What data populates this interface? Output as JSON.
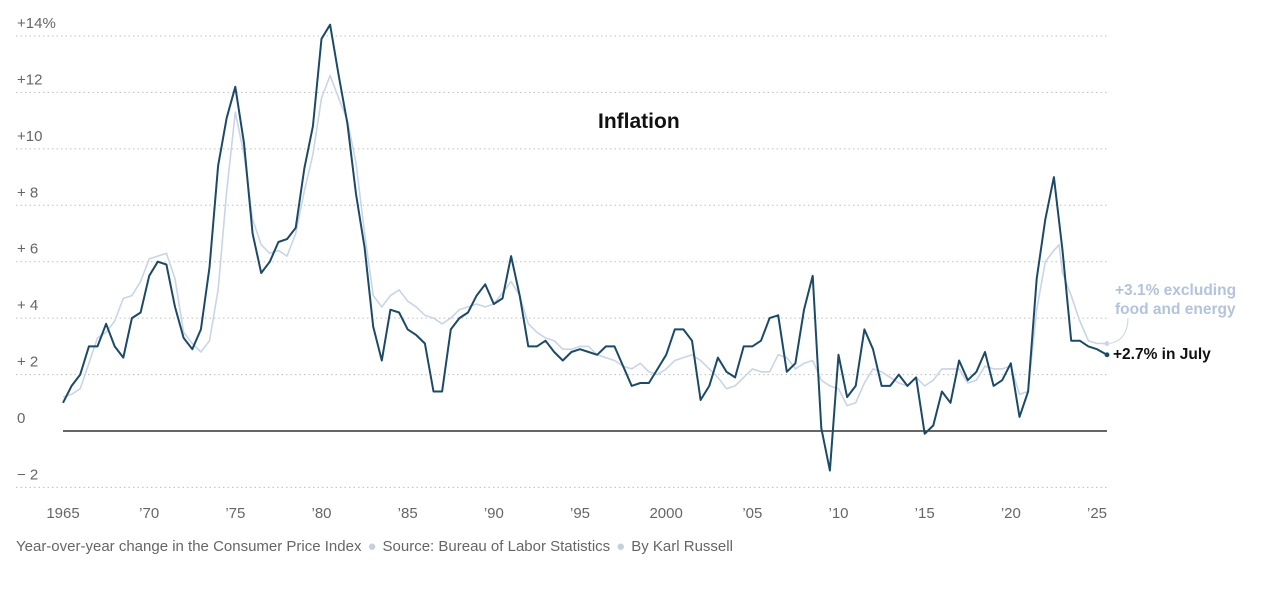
{
  "chart_data": {
    "type": "line",
    "title": "Inflation",
    "xlabel": "",
    "ylabel": "",
    "xlim": [
      1965,
      2025.6
    ],
    "ylim": [
      -2,
      14
    ],
    "y_ticks": [
      {
        "value": 14,
        "label": "+14%"
      },
      {
        "value": 12,
        "label": "+12"
      },
      {
        "value": 10,
        "label": "+10"
      },
      {
        "value": 8,
        "label": "+ 8"
      },
      {
        "value": 6,
        "label": "+ 6"
      },
      {
        "value": 4,
        "label": "+ 4"
      },
      {
        "value": 2,
        "label": "+ 2"
      },
      {
        "value": 0,
        "label": "0"
      },
      {
        "value": -2,
        "label": "− 2"
      }
    ],
    "x_ticks": [
      {
        "value": 1965,
        "label": "1965"
      },
      {
        "value": 1970,
        "label": "’70"
      },
      {
        "value": 1975,
        "label": "’75"
      },
      {
        "value": 1980,
        "label": "’80"
      },
      {
        "value": 1985,
        "label": "’85"
      },
      {
        "value": 1990,
        "label": "’90"
      },
      {
        "value": 1995,
        "label": "’95"
      },
      {
        "value": 2000,
        "label": "2000"
      },
      {
        "value": 2005,
        "label": "’05"
      },
      {
        "value": 2010,
        "label": "’10"
      },
      {
        "value": 2015,
        "label": "’15"
      },
      {
        "value": 2020,
        "label": "’20"
      },
      {
        "value": 2025,
        "label": "’25"
      }
    ],
    "grid": true,
    "series": [
      {
        "name": "+3.1% excluding food and energy",
        "color": "#c9d4e6",
        "points": [
          [
            1965.0,
            1.2
          ],
          [
            1965.5,
            1.3
          ],
          [
            1966.0,
            1.5
          ],
          [
            1966.5,
            2.4
          ],
          [
            1967.0,
            3.3
          ],
          [
            1967.5,
            3.5
          ],
          [
            1968.0,
            3.9
          ],
          [
            1968.5,
            4.7
          ],
          [
            1969.0,
            4.8
          ],
          [
            1969.5,
            5.3
          ],
          [
            1970.0,
            6.1
          ],
          [
            1970.5,
            6.2
          ],
          [
            1971.0,
            6.3
          ],
          [
            1971.5,
            5.4
          ],
          [
            1972.0,
            3.5
          ],
          [
            1972.5,
            3.1
          ],
          [
            1973.0,
            2.8
          ],
          [
            1973.5,
            3.2
          ],
          [
            1974.0,
            5.0
          ],
          [
            1974.5,
            8.5
          ],
          [
            1975.0,
            11.3
          ],
          [
            1975.5,
            9.8
          ],
          [
            1976.0,
            7.5
          ],
          [
            1976.5,
            6.6
          ],
          [
            1977.0,
            6.3
          ],
          [
            1977.5,
            6.4
          ],
          [
            1978.0,
            6.2
          ],
          [
            1978.5,
            7.0
          ],
          [
            1979.0,
            8.5
          ],
          [
            1979.5,
            9.8
          ],
          [
            1980.0,
            11.8
          ],
          [
            1980.5,
            12.6
          ],
          [
            1981.0,
            11.8
          ],
          [
            1981.5,
            11.0
          ],
          [
            1982.0,
            9.5
          ],
          [
            1982.5,
            7.0
          ],
          [
            1983.0,
            4.8
          ],
          [
            1983.5,
            4.4
          ],
          [
            1984.0,
            4.8
          ],
          [
            1984.5,
            5.0
          ],
          [
            1985.0,
            4.6
          ],
          [
            1985.5,
            4.4
          ],
          [
            1986.0,
            4.1
          ],
          [
            1986.5,
            4.0
          ],
          [
            1987.0,
            3.8
          ],
          [
            1987.5,
            4.0
          ],
          [
            1988.0,
            4.3
          ],
          [
            1988.5,
            4.4
          ],
          [
            1989.0,
            4.5
          ],
          [
            1989.5,
            4.4
          ],
          [
            1990.0,
            4.5
          ],
          [
            1990.5,
            4.9
          ],
          [
            1991.0,
            5.3
          ],
          [
            1991.5,
            4.8
          ],
          [
            1992.0,
            3.8
          ],
          [
            1992.5,
            3.5
          ],
          [
            1993.0,
            3.3
          ],
          [
            1993.5,
            3.2
          ],
          [
            1994.0,
            2.9
          ],
          [
            1994.5,
            2.9
          ],
          [
            1995.0,
            3.0
          ],
          [
            1995.5,
            3.0
          ],
          [
            1996.0,
            2.7
          ],
          [
            1996.5,
            2.6
          ],
          [
            1997.0,
            2.5
          ],
          [
            1997.5,
            2.3
          ],
          [
            1998.0,
            2.2
          ],
          [
            1998.5,
            2.4
          ],
          [
            1999.0,
            2.1
          ],
          [
            1999.5,
            2.0
          ],
          [
            2000.0,
            2.2
          ],
          [
            2000.5,
            2.5
          ],
          [
            2001.0,
            2.6
          ],
          [
            2001.5,
            2.7
          ],
          [
            2002.0,
            2.5
          ],
          [
            2002.5,
            2.2
          ],
          [
            2003.0,
            1.9
          ],
          [
            2003.5,
            1.5
          ],
          [
            2004.0,
            1.6
          ],
          [
            2004.5,
            1.9
          ],
          [
            2005.0,
            2.2
          ],
          [
            2005.5,
            2.1
          ],
          [
            2006.0,
            2.1
          ],
          [
            2006.5,
            2.7
          ],
          [
            2007.0,
            2.6
          ],
          [
            2007.5,
            2.2
          ],
          [
            2008.0,
            2.4
          ],
          [
            2008.5,
            2.5
          ],
          [
            2009.0,
            1.8
          ],
          [
            2009.5,
            1.6
          ],
          [
            2010.0,
            1.5
          ],
          [
            2010.5,
            0.9
          ],
          [
            2011.0,
            1.0
          ],
          [
            2011.5,
            1.7
          ],
          [
            2012.0,
            2.2
          ],
          [
            2012.5,
            2.1
          ],
          [
            2013.0,
            1.9
          ],
          [
            2013.5,
            1.7
          ],
          [
            2014.0,
            1.6
          ],
          [
            2014.5,
            1.9
          ],
          [
            2015.0,
            1.6
          ],
          [
            2015.5,
            1.8
          ],
          [
            2016.0,
            2.2
          ],
          [
            2016.5,
            2.2
          ],
          [
            2017.0,
            2.2
          ],
          [
            2017.5,
            1.7
          ],
          [
            2018.0,
            1.8
          ],
          [
            2018.5,
            2.3
          ],
          [
            2019.0,
            2.2
          ],
          [
            2019.5,
            2.2
          ],
          [
            2020.0,
            2.3
          ],
          [
            2020.5,
            1.3
          ],
          [
            2021.0,
            1.4
          ],
          [
            2021.5,
            4.3
          ],
          [
            2022.0,
            6.0
          ],
          [
            2022.5,
            6.4
          ],
          [
            2022.8,
            6.6
          ],
          [
            2023.0,
            5.6
          ],
          [
            2023.5,
            4.8
          ],
          [
            2024.0,
            3.9
          ],
          [
            2024.5,
            3.2
          ],
          [
            2025.0,
            3.1
          ],
          [
            2025.58,
            3.1
          ]
        ]
      },
      {
        "name": "+2.7% in July",
        "color": "#1c4a66",
        "points": [
          [
            1965.0,
            1.0
          ],
          [
            1965.5,
            1.6
          ],
          [
            1966.0,
            2.0
          ],
          [
            1966.5,
            3.0
          ],
          [
            1967.0,
            3.0
          ],
          [
            1967.5,
            3.8
          ],
          [
            1968.0,
            3.0
          ],
          [
            1968.5,
            2.6
          ],
          [
            1969.0,
            4.0
          ],
          [
            1969.5,
            4.2
          ],
          [
            1970.0,
            5.5
          ],
          [
            1970.5,
            6.0
          ],
          [
            1971.0,
            5.9
          ],
          [
            1971.5,
            4.4
          ],
          [
            1972.0,
            3.3
          ],
          [
            1972.5,
            2.9
          ],
          [
            1973.0,
            3.6
          ],
          [
            1973.5,
            5.8
          ],
          [
            1974.0,
            9.4
          ],
          [
            1974.5,
            11.1
          ],
          [
            1975.0,
            12.2
          ],
          [
            1975.5,
            10.2
          ],
          [
            1976.0,
            7.0
          ],
          [
            1976.5,
            5.6
          ],
          [
            1977.0,
            6.0
          ],
          [
            1977.5,
            6.7
          ],
          [
            1978.0,
            6.8
          ],
          [
            1978.5,
            7.2
          ],
          [
            1979.0,
            9.3
          ],
          [
            1979.5,
            10.8
          ],
          [
            1980.0,
            13.9
          ],
          [
            1980.5,
            14.4
          ],
          [
            1981.0,
            12.6
          ],
          [
            1981.5,
            10.9
          ],
          [
            1982.0,
            8.4
          ],
          [
            1982.5,
            6.5
          ],
          [
            1983.0,
            3.7
          ],
          [
            1983.5,
            2.5
          ],
          [
            1984.0,
            4.3
          ],
          [
            1984.5,
            4.2
          ],
          [
            1985.0,
            3.6
          ],
          [
            1985.5,
            3.4
          ],
          [
            1986.0,
            3.1
          ],
          [
            1986.5,
            1.4
          ],
          [
            1987.0,
            1.4
          ],
          [
            1987.5,
            3.6
          ],
          [
            1988.0,
            4.0
          ],
          [
            1988.5,
            4.2
          ],
          [
            1989.0,
            4.8
          ],
          [
            1989.5,
            5.2
          ],
          [
            1990.0,
            4.5
          ],
          [
            1990.5,
            4.7
          ],
          [
            1991.0,
            6.2
          ],
          [
            1991.5,
            4.8
          ],
          [
            1992.0,
            3.0
          ],
          [
            1992.5,
            3.0
          ],
          [
            1993.0,
            3.2
          ],
          [
            1993.5,
            2.8
          ],
          [
            1994.0,
            2.5
          ],
          [
            1994.5,
            2.8
          ],
          [
            1995.0,
            2.9
          ],
          [
            1995.5,
            2.8
          ],
          [
            1996.0,
            2.7
          ],
          [
            1996.5,
            3.0
          ],
          [
            1997.0,
            3.0
          ],
          [
            1997.5,
            2.3
          ],
          [
            1998.0,
            1.6
          ],
          [
            1998.5,
            1.7
          ],
          [
            1999.0,
            1.7
          ],
          [
            1999.5,
            2.2
          ],
          [
            2000.0,
            2.7
          ],
          [
            2000.5,
            3.6
          ],
          [
            2001.0,
            3.6
          ],
          [
            2001.5,
            3.2
          ],
          [
            2002.0,
            1.1
          ],
          [
            2002.5,
            1.6
          ],
          [
            2003.0,
            2.6
          ],
          [
            2003.5,
            2.1
          ],
          [
            2004.0,
            1.9
          ],
          [
            2004.5,
            3.0
          ],
          [
            2005.0,
            3.0
          ],
          [
            2005.5,
            3.2
          ],
          [
            2006.0,
            4.0
          ],
          [
            2006.5,
            4.1
          ],
          [
            2007.0,
            2.1
          ],
          [
            2007.5,
            2.4
          ],
          [
            2008.0,
            4.3
          ],
          [
            2008.5,
            5.5
          ],
          [
            2009.0,
            0.1
          ],
          [
            2009.5,
            -1.4
          ],
          [
            2010.0,
            2.7
          ],
          [
            2010.5,
            1.2
          ],
          [
            2011.0,
            1.6
          ],
          [
            2011.5,
            3.6
          ],
          [
            2012.0,
            2.9
          ],
          [
            2012.5,
            1.6
          ],
          [
            2013.0,
            1.6
          ],
          [
            2013.5,
            2.0
          ],
          [
            2014.0,
            1.6
          ],
          [
            2014.5,
            1.9
          ],
          [
            2015.0,
            -0.1
          ],
          [
            2015.5,
            0.2
          ],
          [
            2016.0,
            1.4
          ],
          [
            2016.5,
            1.0
          ],
          [
            2017.0,
            2.5
          ],
          [
            2017.5,
            1.8
          ],
          [
            2018.0,
            2.1
          ],
          [
            2018.5,
            2.8
          ],
          [
            2019.0,
            1.6
          ],
          [
            2019.5,
            1.8
          ],
          [
            2020.0,
            2.4
          ],
          [
            2020.5,
            0.5
          ],
          [
            2021.0,
            1.4
          ],
          [
            2021.5,
            5.4
          ],
          [
            2022.0,
            7.5
          ],
          [
            2022.5,
            9.0
          ],
          [
            2023.0,
            6.4
          ],
          [
            2023.5,
            3.2
          ],
          [
            2024.0,
            3.2
          ],
          [
            2024.5,
            3.0
          ],
          [
            2025.0,
            2.9
          ],
          [
            2025.58,
            2.7
          ]
        ]
      }
    ],
    "annotations": {
      "core_line1": "+3.1% excluding",
      "core_line2": "food and energy",
      "headline": "+2.7% in July"
    }
  },
  "footer": {
    "description": "Year-over-year change in the Consumer Price Index",
    "source": "Source: Bureau of Labor Statistics",
    "byline": "By Karl Russell",
    "separator": "●"
  },
  "colors": {
    "headline": "#1c4a66",
    "core": "#c9d4e6",
    "grid": "#bfbfbf",
    "zero_line": "#333333"
  }
}
